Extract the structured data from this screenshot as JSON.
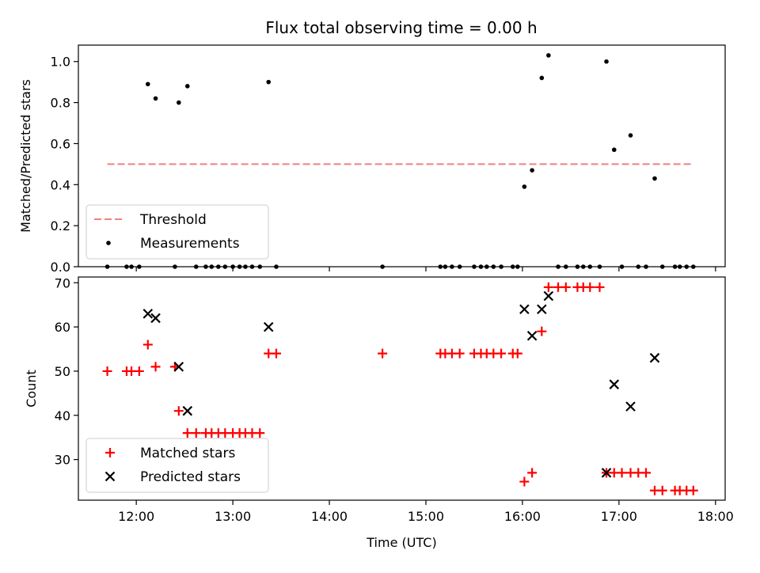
{
  "title": "Flux total observing time = 0.00 h",
  "colors": {
    "threshold": "#f08080",
    "matched": "#ff0000",
    "predicted": "#000000",
    "measurement": "#000000"
  },
  "chart_data": [
    {
      "type": "scatter",
      "ylabel": "Matched/Predicted stars",
      "xlim": [
        11.4,
        18.1
      ],
      "ylim": [
        0,
        1.08
      ],
      "yticks": [
        0.0,
        0.2,
        0.4,
        0.6,
        0.8,
        1.0
      ],
      "ytick_labels": [
        "0.0",
        "0.2",
        "0.4",
        "0.6",
        "0.8",
        "1.0"
      ],
      "legend": "lower-left",
      "threshold": {
        "name": "Threshold",
        "x": [
          11.7,
          17.77
        ],
        "y": [
          0.5,
          0.5
        ]
      },
      "series": [
        {
          "name": "Measurements",
          "points": [
            [
              11.7,
              0
            ],
            [
              11.9,
              0
            ],
            [
              11.95,
              0
            ],
            [
              12.03,
              0
            ],
            [
              12.12,
              0.89
            ],
            [
              12.2,
              0.82
            ],
            [
              12.4,
              0
            ],
            [
              12.44,
              0.8
            ],
            [
              12.53,
              0.88
            ],
            [
              12.62,
              0
            ],
            [
              12.72,
              0
            ],
            [
              12.78,
              0
            ],
            [
              12.85,
              0
            ],
            [
              12.92,
              0
            ],
            [
              13.0,
              0
            ],
            [
              13.07,
              0
            ],
            [
              13.13,
              0
            ],
            [
              13.2,
              0
            ],
            [
              13.28,
              0
            ],
            [
              13.37,
              0.9
            ],
            [
              13.45,
              0
            ],
            [
              14.55,
              0
            ],
            [
              15.15,
              0
            ],
            [
              15.2,
              0
            ],
            [
              15.27,
              0
            ],
            [
              15.35,
              0
            ],
            [
              15.5,
              0
            ],
            [
              15.57,
              0
            ],
            [
              15.63,
              0
            ],
            [
              15.7,
              0
            ],
            [
              15.78,
              0
            ],
            [
              15.9,
              0
            ],
            [
              15.95,
              0
            ],
            [
              16.02,
              0.39
            ],
            [
              16.1,
              0.47
            ],
            [
              16.2,
              0.92
            ],
            [
              16.27,
              1.03
            ],
            [
              16.37,
              0
            ],
            [
              16.45,
              0
            ],
            [
              16.57,
              0
            ],
            [
              16.63,
              0
            ],
            [
              16.7,
              0
            ],
            [
              16.8,
              0
            ],
            [
              16.87,
              1.0
            ],
            [
              16.95,
              0.57
            ],
            [
              17.03,
              0
            ],
            [
              17.12,
              0.64
            ],
            [
              17.2,
              0
            ],
            [
              17.28,
              0
            ],
            [
              17.37,
              0.43
            ],
            [
              17.45,
              0
            ],
            [
              17.58,
              0
            ],
            [
              17.63,
              0
            ],
            [
              17.7,
              0
            ],
            [
              17.77,
              0
            ]
          ]
        }
      ]
    },
    {
      "type": "scatter",
      "xlabel": "Time (UTC)",
      "ylabel": "Count",
      "xlim": [
        11.4,
        18.1
      ],
      "ylim": [
        20.8,
        71.3
      ],
      "yticks": [
        30,
        40,
        50,
        60,
        70
      ],
      "xticks": [
        12,
        13,
        14,
        15,
        16,
        17,
        18
      ],
      "xtick_labels": [
        "12:00",
        "13:00",
        "14:00",
        "15:00",
        "16:00",
        "17:00",
        "18:00"
      ],
      "legend": "lower-left",
      "series": [
        {
          "name": "Matched stars",
          "points": [
            [
              11.7,
              50
            ],
            [
              11.9,
              50
            ],
            [
              11.95,
              50
            ],
            [
              12.03,
              50
            ],
            [
              12.12,
              56
            ],
            [
              12.2,
              51
            ],
            [
              12.4,
              51
            ],
            [
              12.44,
              41
            ],
            [
              12.53,
              36
            ],
            [
              12.62,
              36
            ],
            [
              12.72,
              36
            ],
            [
              12.78,
              36
            ],
            [
              12.85,
              36
            ],
            [
              12.92,
              36
            ],
            [
              13.0,
              36
            ],
            [
              13.07,
              36
            ],
            [
              13.13,
              36
            ],
            [
              13.2,
              36
            ],
            [
              13.28,
              36
            ],
            [
              13.37,
              54
            ],
            [
              13.45,
              54
            ],
            [
              14.55,
              54
            ],
            [
              15.15,
              54
            ],
            [
              15.2,
              54
            ],
            [
              15.27,
              54
            ],
            [
              15.35,
              54
            ],
            [
              15.5,
              54
            ],
            [
              15.57,
              54
            ],
            [
              15.63,
              54
            ],
            [
              15.7,
              54
            ],
            [
              15.78,
              54
            ],
            [
              15.9,
              54
            ],
            [
              15.95,
              54
            ],
            [
              16.02,
              25
            ],
            [
              16.1,
              27
            ],
            [
              16.2,
              59
            ],
            [
              16.27,
              69
            ],
            [
              16.37,
              69
            ],
            [
              16.45,
              69
            ],
            [
              16.57,
              69
            ],
            [
              16.63,
              69
            ],
            [
              16.7,
              69
            ],
            [
              16.8,
              69
            ],
            [
              16.87,
              27
            ],
            [
              16.95,
              27
            ],
            [
              17.03,
              27
            ],
            [
              17.12,
              27
            ],
            [
              17.2,
              27
            ],
            [
              17.28,
              27
            ],
            [
              17.37,
              23
            ],
            [
              17.45,
              23
            ],
            [
              17.58,
              23
            ],
            [
              17.63,
              23
            ],
            [
              17.7,
              23
            ],
            [
              17.77,
              23
            ]
          ]
        },
        {
          "name": "Predicted stars",
          "points": [
            [
              12.12,
              63
            ],
            [
              12.2,
              62
            ],
            [
              12.44,
              51
            ],
            [
              12.53,
              41
            ],
            [
              13.37,
              60
            ],
            [
              16.02,
              64
            ],
            [
              16.1,
              58
            ],
            [
              16.2,
              64
            ],
            [
              16.27,
              67
            ],
            [
              16.87,
              27
            ],
            [
              16.95,
              47
            ],
            [
              17.12,
              42
            ],
            [
              17.37,
              53
            ]
          ]
        }
      ]
    }
  ]
}
